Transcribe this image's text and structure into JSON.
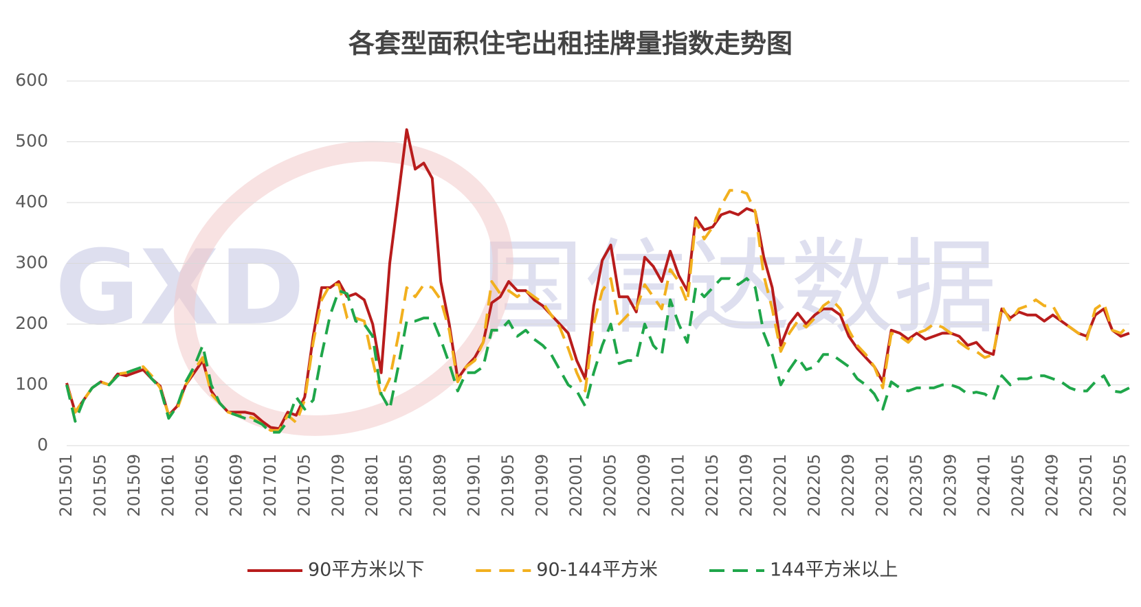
{
  "chart_data": {
    "type": "line",
    "title": "各套型面积住宅出租挂牌量指数走势图",
    "watermark": [
      "GXD",
      "国信达数据"
    ],
    "categories": [
      "201501",
      null,
      null,
      null,
      "201505",
      null,
      null,
      null,
      "201509",
      null,
      null,
      null,
      "201601",
      null,
      null,
      null,
      "201605",
      null,
      null,
      null,
      "201609",
      null,
      null,
      null,
      "201701",
      null,
      null,
      null,
      "201705",
      null,
      null,
      null,
      "201709",
      null,
      null,
      null,
      "201801",
      null,
      null,
      null,
      "201805",
      null,
      null,
      null,
      "201809",
      null,
      null,
      null,
      "201901",
      null,
      null,
      null,
      "201905",
      null,
      null,
      null,
      "201909",
      null,
      null,
      null,
      "202001",
      null,
      null,
      null,
      "202005",
      null,
      null,
      null,
      "202009",
      null,
      null,
      null,
      "202101",
      null,
      null,
      null,
      "202105",
      null,
      null,
      null,
      "202109",
      null,
      null,
      null,
      "202201",
      null,
      null,
      null,
      "202205",
      null,
      null,
      null,
      "202209",
      null,
      null,
      null,
      "202301",
      null,
      null,
      null,
      "202305",
      null,
      null,
      null,
      "202309",
      null,
      null,
      null,
      "202401",
      null,
      null,
      null,
      "202405",
      null,
      null,
      null,
      "202409",
      null,
      null,
      null,
      "202501",
      null,
      null,
      null,
      "202505",
      null
    ],
    "series": [
      {
        "name": "90平方米以下",
        "color": "#b81c1c",
        "dashed": false,
        "values": [
          103,
          55,
          75,
          95,
          105,
          100,
          118,
          115,
          120,
          125,
          110,
          98,
          50,
          65,
          100,
          120,
          140,
          90,
          70,
          55,
          55,
          55,
          52,
          40,
          30,
          28,
          55,
          50,
          80,
          180,
          260,
          260,
          270,
          245,
          250,
          240,
          200,
          120,
          300,
          410,
          520,
          455,
          465,
          440,
          270,
          200,
          110,
          130,
          145,
          170,
          235,
          245,
          270,
          255,
          255,
          240,
          230,
          215,
          200,
          185,
          140,
          110,
          230,
          305,
          330,
          245,
          245,
          220,
          310,
          295,
          270,
          320,
          280,
          255,
          375,
          355,
          360,
          380,
          385,
          380,
          390,
          385,
          310,
          260,
          165,
          200,
          218,
          200,
          215,
          225,
          225,
          215,
          180,
          160,
          145,
          130,
          105,
          190,
          185,
          175,
          185,
          175,
          180,
          185,
          185,
          180,
          165,
          170,
          155,
          150,
          225,
          210,
          220,
          215,
          215,
          205,
          215,
          205,
          195,
          185,
          180,
          215,
          225,
          190,
          180,
          185
        ]
      },
      {
        "name": "90-144平方米",
        "color": "#f2b01e",
        "dashed": true,
        "values": [
          100,
          55,
          75,
          95,
          105,
          100,
          118,
          120,
          125,
          130,
          115,
          95,
          50,
          60,
          100,
          125,
          145,
          85,
          70,
          55,
          50,
          50,
          45,
          35,
          25,
          25,
          50,
          38,
          75,
          170,
          240,
          265,
          265,
          210,
          210,
          205,
          140,
          80,
          110,
          180,
          260,
          245,
          265,
          260,
          240,
          190,
          105,
          130,
          140,
          170,
          270,
          250,
          255,
          245,
          255,
          245,
          235,
          215,
          195,
          160,
          120,
          90,
          200,
          255,
          275,
          200,
          215,
          225,
          265,
          245,
          225,
          290,
          270,
          235,
          370,
          340,
          360,
          395,
          420,
          420,
          415,
          385,
          280,
          225,
          155,
          185,
          205,
          195,
          210,
          230,
          240,
          225,
          190,
          165,
          150,
          130,
          95,
          185,
          180,
          170,
          185,
          190,
          200,
          195,
          185,
          170,
          160,
          155,
          145,
          150,
          230,
          205,
          225,
          230,
          240,
          230,
          230,
          205,
          195,
          185,
          175,
          225,
          235,
          190,
          185,
          200
        ]
      },
      {
        "name": "144平方米以上",
        "color": "#1fa64a",
        "dashed": true,
        "values": [
          100,
          40,
          75,
          95,
          105,
          100,
          115,
          120,
          125,
          130,
          110,
          95,
          45,
          65,
          105,
          130,
          165,
          100,
          70,
          55,
          50,
          45,
          42,
          35,
          22,
          22,
          40,
          80,
          60,
          75,
          150,
          215,
          255,
          250,
          205,
          200,
          180,
          85,
          60,
          130,
          205,
          205,
          210,
          210,
          175,
          135,
          90,
          120,
          120,
          130,
          190,
          190,
          205,
          180,
          190,
          175,
          165,
          150,
          125,
          100,
          90,
          65,
          120,
          165,
          200,
          135,
          140,
          140,
          200,
          165,
          150,
          240,
          200,
          170,
          260,
          245,
          260,
          275,
          275,
          265,
          275,
          260,
          185,
          150,
          100,
          125,
          145,
          125,
          130,
          150,
          150,
          140,
          130,
          110,
          100,
          85,
          60,
          105,
          95,
          90,
          95,
          95,
          95,
          100,
          100,
          95,
          85,
          88,
          85,
          75,
          115,
          100,
          110,
          110,
          115,
          115,
          110,
          105,
          95,
          90,
          90,
          105,
          115,
          90,
          88,
          95
        ]
      }
    ],
    "ylim": [
      0,
      600
    ],
    "yticks": [
      0,
      100,
      200,
      300,
      400,
      500,
      600
    ],
    "grid": true,
    "legend": "bottom"
  }
}
